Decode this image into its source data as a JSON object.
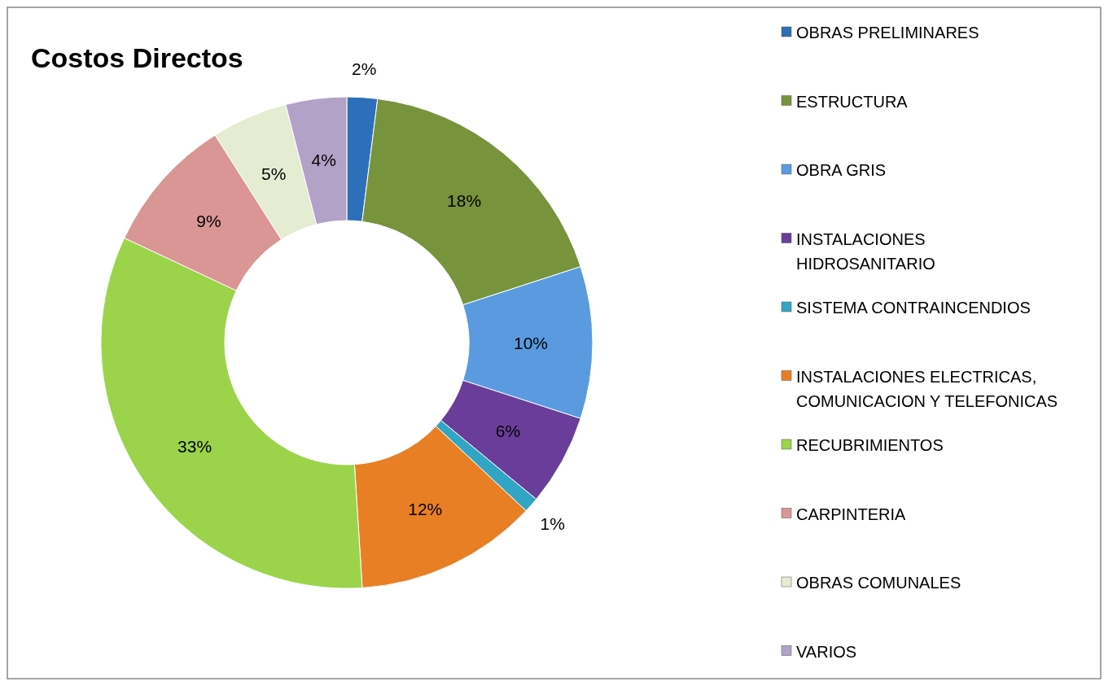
{
  "chart_data": {
    "type": "donut",
    "title": "Costos Directos",
    "categories": [
      "OBRAS PRELIMINARES",
      "ESTRUCTURA",
      "OBRA GRIS",
      "INSTALACIONES HIDROSANITARIO",
      "SISTEMA CONTRAINCENDIOS",
      "INSTALACIONES ELECTRICAS, COMUNICACION Y TELEFONICAS",
      "RECUBRIMIENTOS",
      "CARPINTERIA",
      "OBRAS COMUNALES",
      "VARIOS"
    ],
    "values": [
      2,
      18,
      10,
      6,
      1,
      12,
      33,
      9,
      5,
      4
    ],
    "value_labels": [
      "2%",
      "18%",
      "10%",
      "6%",
      "1%",
      "12%",
      "33%",
      "9%",
      "5%",
      "4%"
    ],
    "colors": [
      "#2e6fba",
      "#77933c",
      "#5a9be0",
      "#6a3d9a",
      "#31a6c4",
      "#e97f24",
      "#9bd44a",
      "#d99694",
      "#e4ecd2",
      "#b3a2c7"
    ],
    "legend": "right"
  }
}
